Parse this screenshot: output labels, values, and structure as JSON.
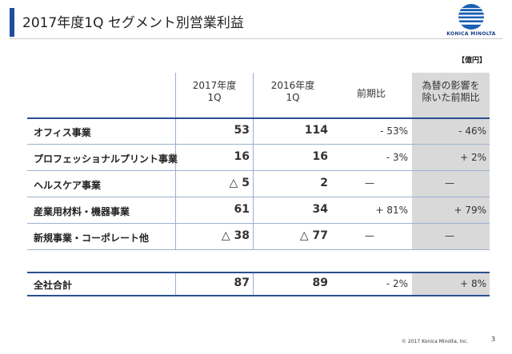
{
  "title": "2017年度1Q セグメント別営業利益",
  "logo": {
    "brand": "KONICA MINOLTA"
  },
  "unit": "【億円】",
  "columns": [
    {
      "line1": "2017年度",
      "line2": "1Q"
    },
    {
      "line1": "2016年度",
      "line2": "1Q"
    },
    {
      "line1": "前期比",
      "line2": ""
    },
    {
      "line1": "為替の影響を",
      "line2": "除いた前期比"
    }
  ],
  "rows": [
    {
      "label": "オフィス事業",
      "fy2017": "53",
      "fy2016": "114",
      "yoy": "- 53%",
      "yoy_ex_fx": "- 46%"
    },
    {
      "label": "プロフェッショナルプリント事業",
      "fy2017": "16",
      "fy2016": "16",
      "yoy": "- 3%",
      "yoy_ex_fx": "+ 2%"
    },
    {
      "label": "ヘルスケア事業",
      "fy2017": "△ 5",
      "fy2016": "2",
      "yoy": "—",
      "yoy_ex_fx": "—"
    },
    {
      "label": "産業用材料・機器事業",
      "fy2017": "61",
      "fy2016": "34",
      "yoy": "+ 81%",
      "yoy_ex_fx": "+ 79%"
    },
    {
      "label": "新規事業・コーポレート他",
      "fy2017": "△ 38",
      "fy2016": "△ 77",
      "yoy": "—",
      "yoy_ex_fx": "—"
    }
  ],
  "total": {
    "label": "全社合計",
    "fy2017": "87",
    "fy2016": "89",
    "yoy": "- 2%",
    "yoy_ex_fx": "+ 8%"
  },
  "footer": {
    "copyright": "© 2017 Konica Minolta, Inc.",
    "page": "3"
  },
  "colors": {
    "accent": "#1f4e9c",
    "fx_column": "#d9d9d9",
    "rule": "#9bb0d0"
  }
}
